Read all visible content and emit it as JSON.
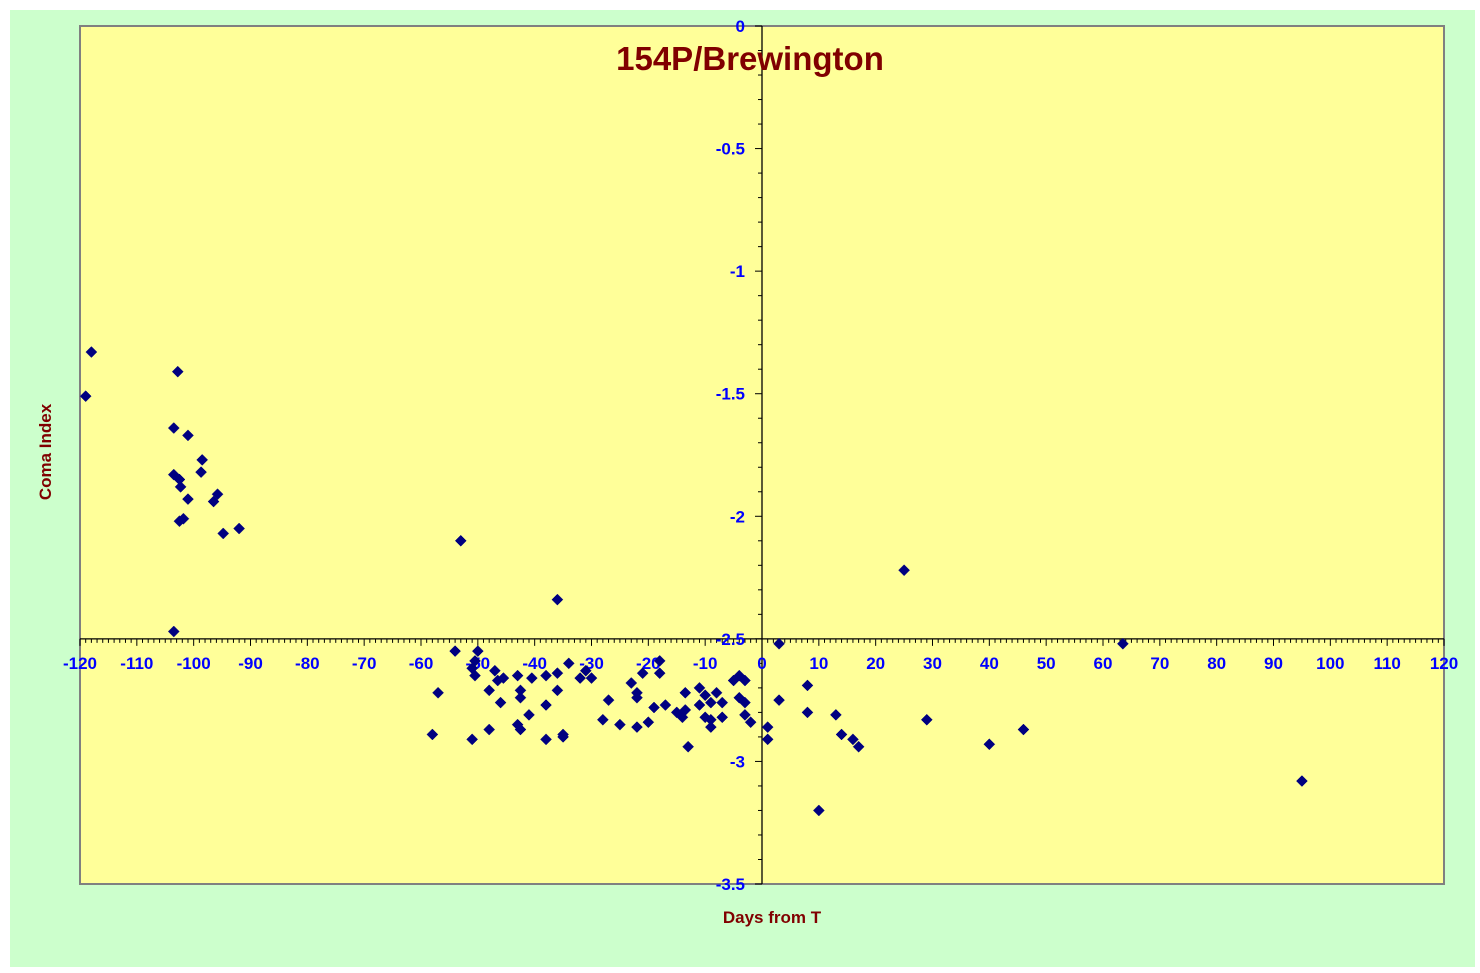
{
  "chart_data": {
    "type": "scatter",
    "title": "154P/Brewington",
    "xlabel": "Days from T",
    "ylabel": "Coma Index",
    "xlim": [
      -120,
      120
    ],
    "ylim": [
      -3.5,
      0
    ],
    "x_ticks": [
      -120,
      -110,
      -100,
      -90,
      -80,
      -70,
      -60,
      -50,
      -40,
      -30,
      -20,
      -10,
      0,
      10,
      20,
      30,
      40,
      50,
      60,
      70,
      80,
      90,
      100,
      110,
      120
    ],
    "y_ticks": [
      0,
      -0.5,
      -1,
      -1.5,
      -2,
      -2.5,
      -3,
      -3.5
    ],
    "x_tick_labels": [
      "-120",
      "-110",
      "-100",
      "-90",
      "-80",
      "-70",
      "-60",
      "-50",
      "-40",
      "-30",
      "-20",
      "-10",
      "0",
      "10",
      "20",
      "30",
      "40",
      "50",
      "60",
      "70",
      "80",
      "90",
      "100",
      "110",
      "120"
    ],
    "y_tick_labels": [
      "0",
      "-0.5",
      "-1",
      "-1.5",
      "-2",
      "-2.5",
      "-3",
      "-3.5"
    ],
    "x_axis_crosses_y": -2.5,
    "grid": false,
    "legend": "none",
    "colors": {
      "outer_background": "#ccffcc",
      "plot_background": "#ffff99",
      "marker": "#000080",
      "tick_label": "#0000ff",
      "axis_title": "#800000",
      "title": "#800000",
      "axis_line": "#000000",
      "plot_border": "#808080"
    },
    "series": [
      {
        "marker": "diamond",
        "points": [
          [
            -119,
            -1.51
          ],
          [
            -118,
            -1.33
          ],
          [
            -103.5,
            -1.64
          ],
          [
            -102.8,
            -1.41
          ],
          [
            -101,
            -1.67
          ],
          [
            -98.5,
            -1.77
          ],
          [
            -98.7,
            -1.82
          ],
          [
            -103.5,
            -1.83
          ],
          [
            -102.5,
            -1.85
          ],
          [
            -102.3,
            -1.88
          ],
          [
            -95.8,
            -1.91
          ],
          [
            -96.5,
            -1.94
          ],
          [
            -101,
            -1.93
          ],
          [
            -102.5,
            -2.02
          ],
          [
            -101.8,
            -2.01
          ],
          [
            -94.8,
            -2.07
          ],
          [
            -92,
            -2.05
          ],
          [
            -103.5,
            -2.47
          ],
          [
            -53,
            -2.1
          ],
          [
            -36,
            -2.34
          ],
          [
            25,
            -2.22
          ],
          [
            -54,
            -2.55
          ],
          [
            -50,
            -2.55
          ],
          [
            -50.5,
            -2.59
          ],
          [
            -51,
            -2.62
          ],
          [
            -50.5,
            -2.65
          ],
          [
            -47,
            -2.63
          ],
          [
            -46.5,
            -2.67
          ],
          [
            -45.5,
            -2.66
          ],
          [
            -48,
            -2.71
          ],
          [
            -46,
            -2.76
          ],
          [
            -43,
            -2.65
          ],
          [
            -40.5,
            -2.66
          ],
          [
            -38,
            -2.65
          ],
          [
            -36,
            -2.64
          ],
          [
            -42.5,
            -2.71
          ],
          [
            -42.5,
            -2.74
          ],
          [
            -38,
            -2.77
          ],
          [
            -36,
            -2.71
          ],
          [
            -34,
            -2.6
          ],
          [
            -32,
            -2.66
          ],
          [
            -31,
            -2.63
          ],
          [
            -30,
            -2.66
          ],
          [
            -43,
            -2.85
          ],
          [
            -42.5,
            -2.87
          ],
          [
            -41,
            -2.81
          ],
          [
            -38,
            -2.91
          ],
          [
            -35,
            -2.9
          ],
          [
            -35,
            -2.89
          ],
          [
            -48,
            -2.87
          ],
          [
            -51,
            -2.91
          ],
          [
            -58,
            -2.89
          ],
          [
            -57,
            -2.72
          ],
          [
            -27,
            -2.75
          ],
          [
            -28,
            -2.83
          ],
          [
            -25,
            -2.85
          ],
          [
            -23,
            -2.68
          ],
          [
            -22,
            -2.72
          ],
          [
            -22,
            -2.74
          ],
          [
            -21,
            -2.64
          ],
          [
            -18,
            -2.59
          ],
          [
            -18,
            -2.64
          ],
          [
            -17,
            -2.77
          ],
          [
            -19,
            -2.78
          ],
          [
            -20,
            -2.84
          ],
          [
            -22,
            -2.86
          ],
          [
            -15,
            -2.8
          ],
          [
            -14,
            -2.82
          ],
          [
            -13.5,
            -2.79
          ],
          [
            -13.5,
            -2.72
          ],
          [
            -11,
            -2.7
          ],
          [
            -10,
            -2.73
          ],
          [
            -9,
            -2.76
          ],
          [
            -8,
            -2.72
          ],
          [
            -7,
            -2.76
          ],
          [
            -11,
            -2.77
          ],
          [
            -10,
            -2.82
          ],
          [
            -9,
            -2.83
          ],
          [
            -9,
            -2.86
          ],
          [
            -7,
            -2.82
          ],
          [
            -13,
            -2.94
          ],
          [
            -5,
            -2.67
          ],
          [
            -4,
            -2.65
          ],
          [
            -3,
            -2.67
          ],
          [
            -4,
            -2.74
          ],
          [
            -3,
            -2.76
          ],
          [
            -3,
            -2.81
          ],
          [
            -2,
            -2.84
          ],
          [
            1,
            -2.86
          ],
          [
            1,
            -2.91
          ],
          [
            3,
            -2.52
          ],
          [
            3,
            -2.75
          ],
          [
            8,
            -2.69
          ],
          [
            8,
            -2.8
          ],
          [
            10,
            -3.2
          ],
          [
            13,
            -2.81
          ],
          [
            14,
            -2.89
          ],
          [
            16,
            -2.91
          ],
          [
            17,
            -2.94
          ],
          [
            29,
            -2.83
          ],
          [
            40,
            -2.93
          ],
          [
            46,
            -2.87
          ],
          [
            63.5,
            -2.52
          ],
          [
            95,
            -3.08
          ]
        ]
      }
    ]
  }
}
